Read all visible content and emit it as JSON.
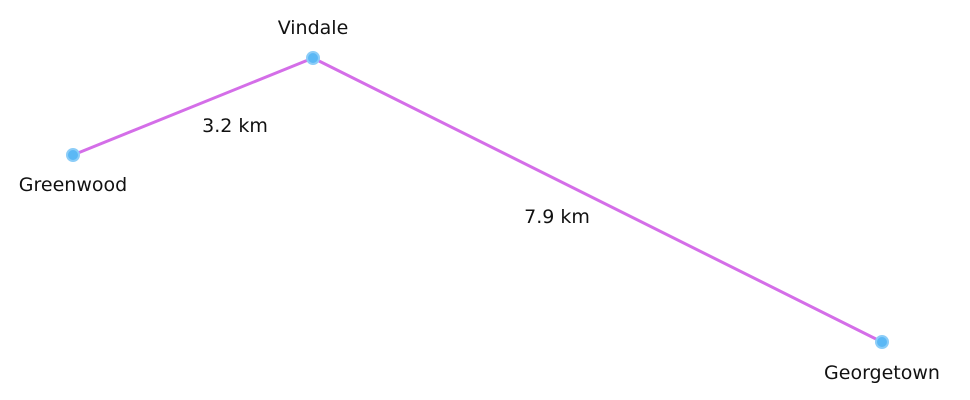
{
  "colors": {
    "route": "#d46ee8",
    "node_fill": "#5bb8f5",
    "node_stroke": "#8ccdf8"
  },
  "nodes": {
    "vindale": {
      "label": "Vindale"
    },
    "greenwood": {
      "label": "Greenwood"
    },
    "georgetown": {
      "label": "Georgetown"
    }
  },
  "edges": {
    "greenwood_vindale": {
      "distance": "3.2 km"
    },
    "vindale_georgetown": {
      "distance": "7.9 km"
    }
  }
}
